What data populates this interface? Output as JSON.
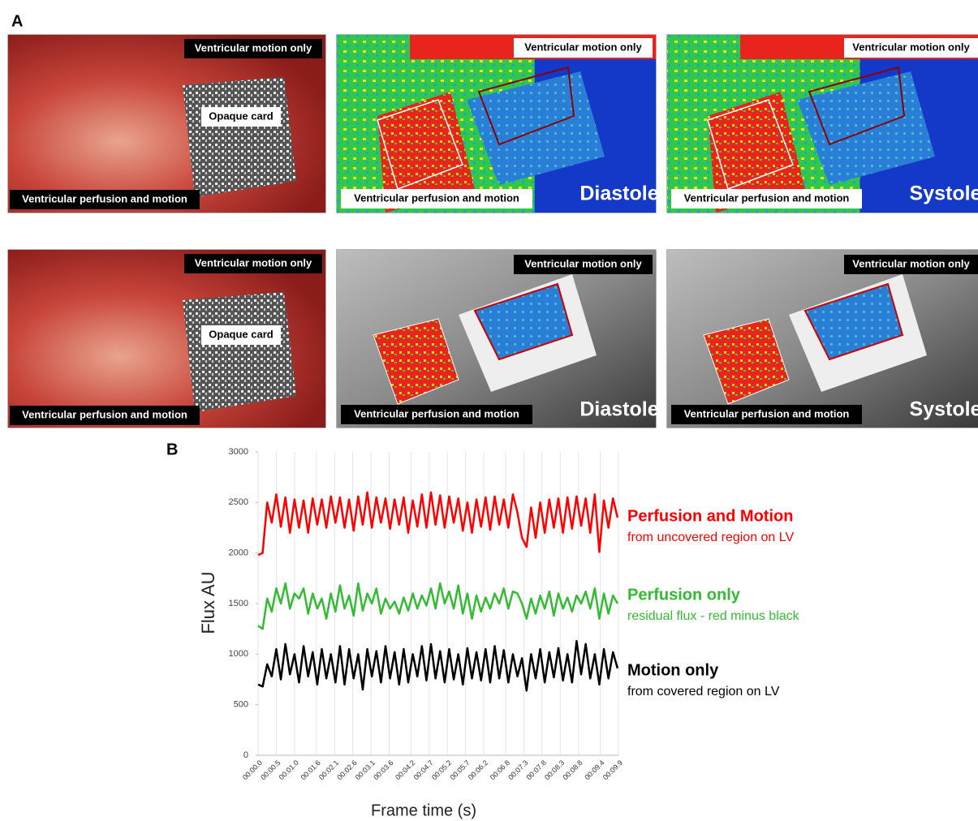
{
  "panel_a": {
    "label": "A",
    "images": [
      {
        "labels": [
          "Ventricular motion only",
          "Opaque card",
          "Ventricular perfusion and motion"
        ]
      },
      {
        "labels": [
          "Ventricular motion only",
          "Ventricular perfusion and motion",
          "Diastole"
        ]
      },
      {
        "labels": [
          "Ventricular motion only",
          "Ventricular perfusion and motion",
          "Systole"
        ]
      },
      {
        "labels": [
          "Ventricular motion only",
          "Opaque card",
          "Ventricular perfusion and motion"
        ]
      },
      {
        "labels": [
          "Ventricular motion only",
          "Ventricular perfusion and motion",
          "Diastole"
        ]
      },
      {
        "labels": [
          "Ventricular motion only",
          "Ventricular perfusion and motion",
          "Systole"
        ]
      }
    ]
  },
  "chart_data": {
    "type": "line",
    "panel_label": "B",
    "xlabel": "Frame time (s)",
    "ylabel": "Flux AU",
    "x": [
      0,
      0.125,
      0.25,
      0.375,
      0.5,
      0.625,
      0.75,
      0.875,
      1,
      1.125,
      1.25,
      1.375,
      1.5,
      1.625,
      1.75,
      1.875,
      2,
      2.125,
      2.25,
      2.375,
      2.5,
      2.625,
      2.75,
      2.875,
      3,
      3.125,
      3.25,
      3.375,
      3.5,
      3.625,
      3.75,
      3.875,
      4,
      4.125,
      4.25,
      4.375,
      4.5,
      4.625,
      4.75,
      4.875,
      5,
      5.125,
      5.25,
      5.375,
      5.5,
      5.625,
      5.75,
      5.875,
      6,
      6.125,
      6.25,
      6.375,
      6.5,
      6.625,
      6.75,
      6.875,
      7,
      7.125,
      7.25,
      7.375,
      7.5,
      7.625,
      7.75,
      7.875,
      8,
      8.125,
      8.25,
      8.375,
      8.5,
      8.625,
      8.75,
      8.875,
      9,
      9.125,
      9.25,
      9.375,
      9.5,
      9.625,
      9.75,
      9.875
    ],
    "series": [
      {
        "name": "Perfusion and Motion",
        "description": "from uncovered region on LV",
        "color": "#ff0000",
        "values": [
          1980,
          2000,
          2500,
          2300,
          2580,
          2260,
          2550,
          2200,
          2530,
          2250,
          2520,
          2200,
          2540,
          2280,
          2530,
          2250,
          2560,
          2300,
          2550,
          2250,
          2530,
          2220,
          2560,
          2280,
          2600,
          2250,
          2550,
          2300,
          2540,
          2240,
          2530,
          2280,
          2550,
          2200,
          2520,
          2260,
          2580,
          2250,
          2600,
          2280,
          2570,
          2250,
          2560,
          2300,
          2540,
          2220,
          2500,
          2200,
          2530,
          2260,
          2550,
          2230,
          2560,
          2280,
          2530,
          2250,
          2580,
          2400,
          2150,
          2060,
          2450,
          2150,
          2500,
          2200,
          2530,
          2250,
          2540,
          2200,
          2550,
          2240,
          2560,
          2270,
          2540,
          2200,
          2580,
          2010,
          2520,
          2250,
          2540,
          2350
        ]
      },
      {
        "name": "Perfusion only",
        "description": "residual flux - red minus black",
        "color": "#33bb33",
        "values": [
          1280,
          1250,
          1550,
          1420,
          1650,
          1500,
          1700,
          1450,
          1600,
          1550,
          1650,
          1400,
          1600,
          1450,
          1550,
          1350,
          1600,
          1420,
          1680,
          1450,
          1580,
          1380,
          1700,
          1430,
          1600,
          1500,
          1650,
          1400,
          1550,
          1450,
          1520,
          1400,
          1560,
          1430,
          1600,
          1450,
          1580,
          1480,
          1650,
          1450,
          1700,
          1500,
          1620,
          1450,
          1680,
          1400,
          1600,
          1350,
          1580,
          1420,
          1560,
          1450,
          1600,
          1500,
          1650,
          1450,
          1620,
          1600,
          1500,
          1350,
          1550,
          1400,
          1580,
          1450,
          1620,
          1380,
          1600,
          1450,
          1560,
          1420,
          1580,
          1500,
          1620,
          1450,
          1650,
          1350,
          1600,
          1400,
          1580,
          1500
        ]
      },
      {
        "name": "Motion only",
        "description": "from covered region on LV",
        "color": "#000000",
        "values": [
          700,
          680,
          900,
          780,
          1050,
          750,
          1100,
          800,
          1000,
          720,
          1080,
          780,
          1020,
          700,
          1050,
          760,
          1000,
          720,
          1080,
          700,
          1050,
          760,
          1000,
          650,
          1050,
          780,
          1030,
          720,
          1080,
          760,
          1020,
          700,
          1050,
          720,
          1000,
          780,
          1080,
          740,
          1100,
          760,
          1030,
          720,
          1050,
          750,
          1000,
          700,
          1060,
          760,
          1020,
          740,
          1050,
          720,
          1080,
          760,
          1040,
          720,
          1000,
          780,
          960,
          640,
          1000,
          760,
          1050,
          720,
          1020,
          770,
          1060,
          740,
          1000,
          720,
          1130,
          800,
          1100,
          760,
          1000,
          700,
          1050,
          760,
          1020,
          860
        ]
      }
    ],
    "xlim": [
      0,
      9.9
    ],
    "xticks": [
      {
        "value": 0,
        "label": "00:00.0"
      },
      {
        "value": 0.5,
        "label": "00:00.5"
      },
      {
        "value": 1.0,
        "label": "00:01.0"
      },
      {
        "value": 1.6,
        "label": "00:01.6"
      },
      {
        "value": 2.1,
        "label": "00:02.1"
      },
      {
        "value": 2.6,
        "label": "00:02.6"
      },
      {
        "value": 3.1,
        "label": "00:03.1"
      },
      {
        "value": 3.6,
        "label": "00:03.6"
      },
      {
        "value": 4.2,
        "label": "00:04.2"
      },
      {
        "value": 4.7,
        "label": "00:04.7"
      },
      {
        "value": 5.2,
        "label": "00:05.2"
      },
      {
        "value": 5.7,
        "label": "00:05.7"
      },
      {
        "value": 6.2,
        "label": "00:06.2"
      },
      {
        "value": 6.8,
        "label": "00:06.8"
      },
      {
        "value": 7.3,
        "label": "00:07.3"
      },
      {
        "value": 7.8,
        "label": "00:07.8"
      },
      {
        "value": 8.3,
        "label": "00:08.3"
      },
      {
        "value": 8.8,
        "label": "00:08.8"
      },
      {
        "value": 9.4,
        "label": "00:09.4"
      },
      {
        "value": 9.9,
        "label": "00:09.9"
      }
    ],
    "ylim": [
      0,
      3000
    ],
    "yticks": [
      0,
      500,
      1000,
      1500,
      2000,
      2500,
      3000
    ],
    "grid": "x"
  }
}
